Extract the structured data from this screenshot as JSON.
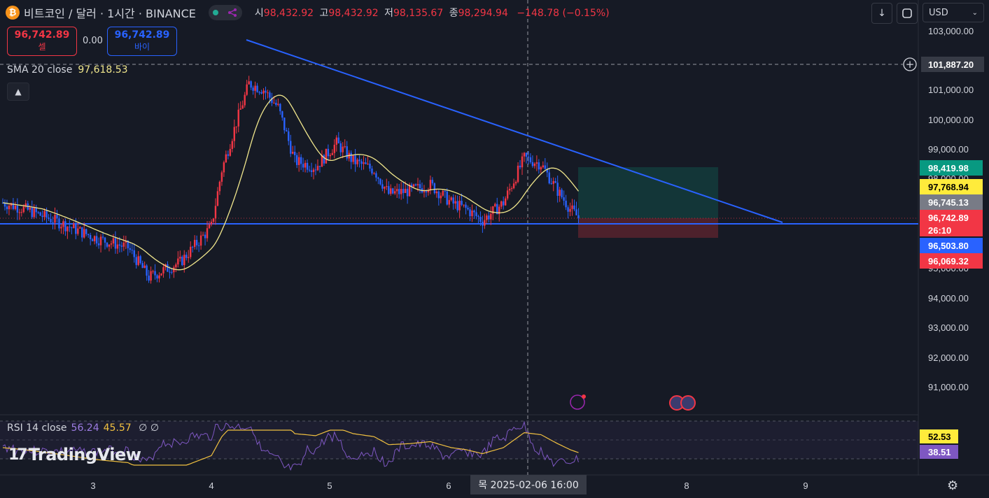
{
  "header": {
    "symbol_icon": "bitcoin-icon",
    "symbol": "비트코인 / 달러 · 1시간 · BINANCE",
    "ohlc": [
      {
        "key": "시",
        "value": "98,432.92"
      },
      {
        "key": "고",
        "value": "98,432.92"
      },
      {
        "key": "저",
        "value": "98,135.67"
      },
      {
        "key": "종",
        "value": "98,294.94"
      }
    ],
    "change": "−148.78 (−0.15%)"
  },
  "trade": {
    "sell_price": "96,742.89",
    "sell_label": "셀",
    "spread": "0.00",
    "buy_price": "96,742.89",
    "buy_label": "바이"
  },
  "toolbar": {
    "download_icon": "arrow-down-icon",
    "fullscreen_icon": "fullscreen-icon",
    "currency": "USD"
  },
  "indicators": {
    "sma_label": "SMA 20 close",
    "sma_value": "97,618.53",
    "rsi_label": "RSI 14 close",
    "rsi_value": "56.24",
    "rsi_ma_value": "45.57",
    "rsi_extra": "∅ ∅"
  },
  "price_axis": {
    "ticks": [
      "103,000.00",
      "101,000.00",
      "100,000.00",
      "99,000.00",
      "98,000.00",
      "95,000.00",
      "94,000.00",
      "93,000.00",
      "92,000.00",
      "91,000.00"
    ],
    "crosshair_price": "101,887.20",
    "labels": [
      {
        "text": "98,419.98",
        "color": "#089981"
      },
      {
        "text": "97,768.94",
        "color": "#ffeb3b"
      },
      {
        "text": "96,745.13",
        "color": "#787b86"
      },
      {
        "text": "96,742.89",
        "color": "#f23645"
      },
      {
        "text": "26:10",
        "color": "#f23645"
      },
      {
        "text": "96,503.80",
        "color": "#2962ff"
      },
      {
        "text": "96,069.32",
        "color": "#f23645"
      }
    ]
  },
  "rsi_axis": {
    "labels": [
      {
        "text": "52.53",
        "color": "#ffeb3b"
      },
      {
        "text": "38.51",
        "color": "#7e57c2"
      }
    ]
  },
  "time_axis": {
    "ticks": [
      "3",
      "4",
      "5",
      "6",
      "8",
      "9"
    ],
    "crosshair_time": "목 2025-02-06   16:00"
  },
  "branding": {
    "logo": "TradingView"
  },
  "colors": {
    "up": "#f23645",
    "down": "#2962ff",
    "sma": "#f0e68c",
    "rsi": "#7e57c2",
    "background": "#161a25"
  }
}
